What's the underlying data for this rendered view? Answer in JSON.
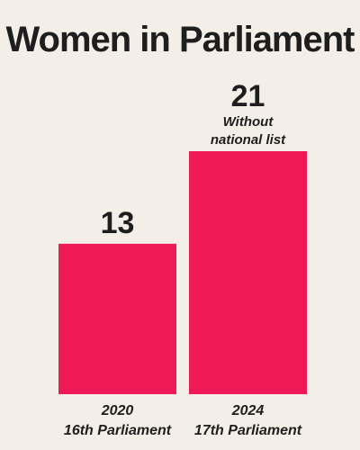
{
  "chart_data": {
    "type": "bar",
    "title": "Women in Parliament",
    "categories": [
      {
        "year": "2020",
        "name": "16th Parliament"
      },
      {
        "year": "2024",
        "name": "17th Parliament"
      }
    ],
    "values": [
      13,
      21
    ],
    "annotations": [
      {
        "category_index": 1,
        "lines": [
          "Without",
          "national list"
        ]
      }
    ],
    "ylim": [
      0,
      21
    ],
    "grid": false,
    "legend": "none"
  },
  "colors": {
    "bar": "#ef1a55",
    "background": "#f3efe8",
    "text": "#1e1e1e"
  }
}
